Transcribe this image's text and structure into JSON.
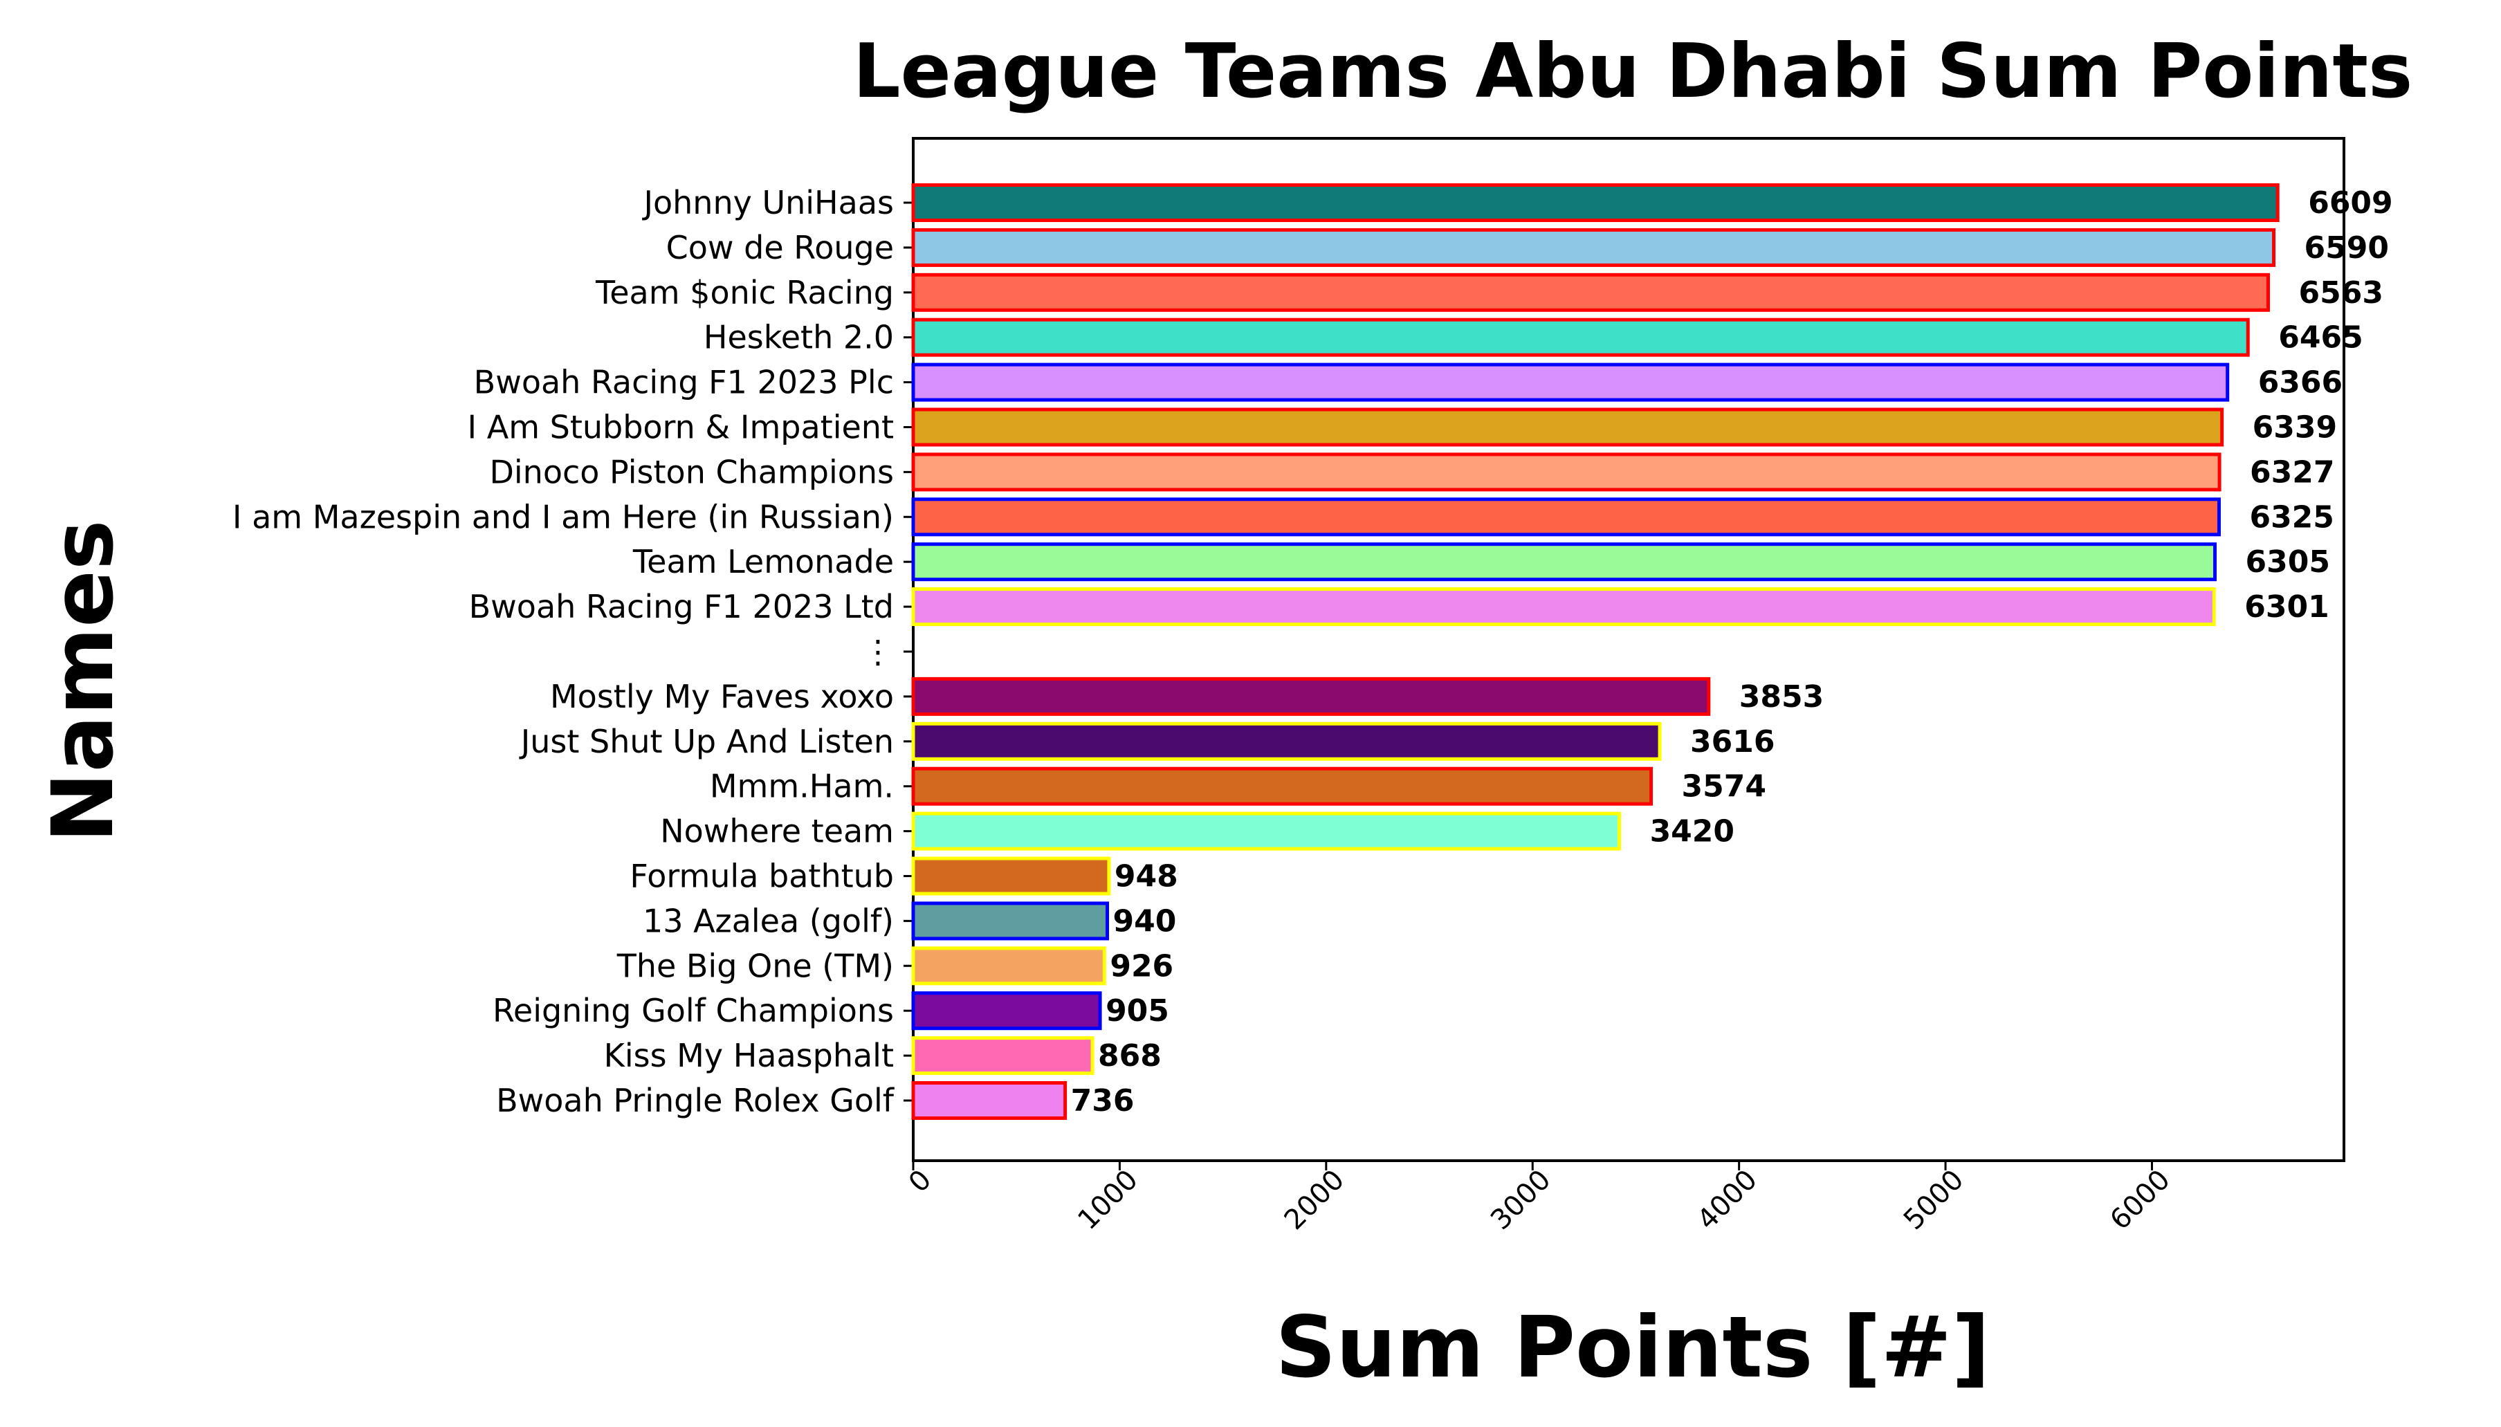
{
  "chart_data": {
    "type": "bar",
    "orientation": "horizontal",
    "title": "League Teams Abu Dhabi Sum Points",
    "xlabel": "Sum Points [#]",
    "ylabel": "Names",
    "xlim": [
      0,
      6930
    ],
    "xticks": [
      0,
      1000,
      2000,
      3000,
      4000,
      5000,
      6000
    ],
    "xtick_labels": [
      "0",
      "1000",
      "2000",
      "3000",
      "4000",
      "5000",
      "6000"
    ],
    "grid": false,
    "legend": "none",
    "categories": [
      "Johnny UniHaas",
      "Cow de Rouge",
      "Team $onic Racing",
      "Hesketh 2.0",
      "Bwoah Racing F1 2023 Plc",
      "I Am Stubborn & Impatient",
      "Dinoco Piston Champions",
      "I am Mazespin and I am Here (in Russian)",
      "Team Lemonade",
      "Bwoah Racing F1 2023 Ltd",
      "⋮",
      "Mostly My Faves xoxo",
      "Just Shut Up And Listen",
      "Mmm.Ham.",
      "Nowhere team",
      "Formula bathtub",
      "13 Azalea (golf)",
      "The Big One (TM)",
      "Reigning Golf Champions",
      "Kiss My Haasphalt",
      "Bwoah Pringle Rolex Golf"
    ],
    "values": [
      6609,
      6590,
      6563,
      6465,
      6366,
      6339,
      6327,
      6325,
      6305,
      6301,
      null,
      3853,
      3616,
      3574,
      3420,
      948,
      940,
      926,
      905,
      868,
      736
    ],
    "value_labels": [
      "6609",
      "6590",
      "6563",
      "6465",
      "6366",
      "6339",
      "6327",
      "6325",
      "6305",
      "6301",
      "",
      "3853",
      "3616",
      "3574",
      "3420",
      "948",
      "940",
      "926",
      "905",
      "868",
      "736"
    ],
    "fill_colors": [
      "#0f7a78",
      "#8ec6e6",
      "#ff6b55",
      "#3fe0c8",
      "#d88fff",
      "#dca41c",
      "#ffa07a",
      "#ff6347",
      "#98fb98",
      "#ee88ee",
      null,
      "#8b0a6e",
      "#4b0a6e",
      "#d2691e",
      "#7fffd4",
      "#d2691e",
      "#5f9ea0",
      "#f4a460",
      "#7b0a9e",
      "#ff69b4",
      "#ee82ee"
    ],
    "edge_colors": [
      "#ff0000",
      "#ff0000",
      "#ff0000",
      "#ff0000",
      "#0000ff",
      "#ff0000",
      "#ff0000",
      "#0000ff",
      "#0000ff",
      "#ffff00",
      null,
      "#ff0000",
      "#ffff00",
      "#ff0000",
      "#ffff00",
      "#ffff00",
      "#0000ff",
      "#ffff00",
      "#0000ff",
      "#ffff00",
      "#ff0000"
    ]
  }
}
